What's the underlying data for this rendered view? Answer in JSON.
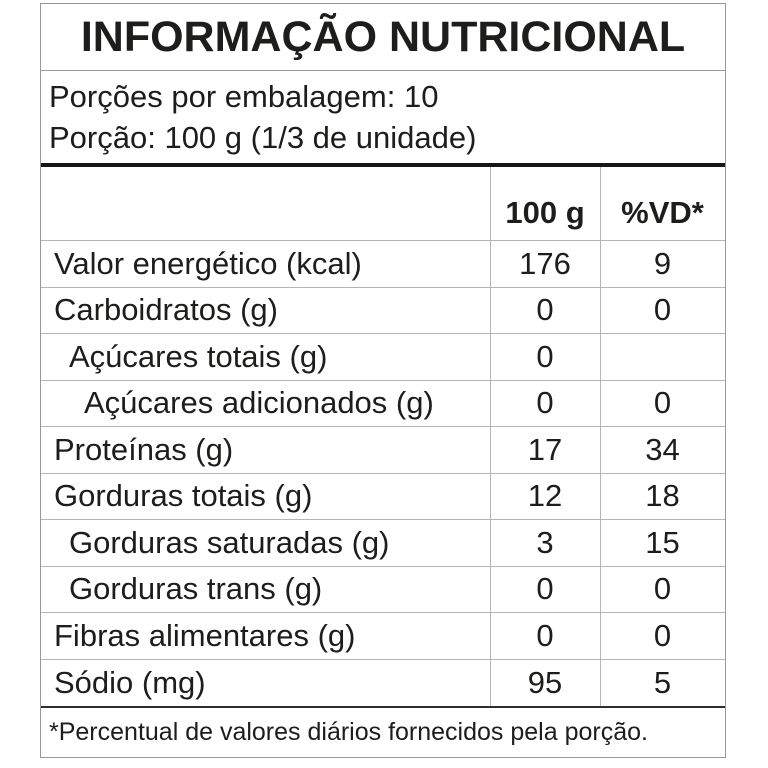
{
  "title": "INFORMAÇÃO NUTRICIONAL",
  "serving": {
    "servings_per_package": "Porções por embalagem: 10",
    "serving_size": "Porção: 100 g (1/3 de unidade)"
  },
  "table": {
    "headers": {
      "amount": "100 g",
      "vd": "%VD*"
    },
    "rows": [
      {
        "label": "Valor energético (kcal)",
        "indent": 0,
        "amount": "176",
        "vd": "9"
      },
      {
        "label": "Carboidratos (g)",
        "indent": 0,
        "amount": "0",
        "vd": "0"
      },
      {
        "label": "Açúcares totais (g)",
        "indent": 1,
        "amount": "0",
        "vd": ""
      },
      {
        "label": "Açúcares adicionados (g)",
        "indent": 2,
        "amount": "0",
        "vd": "0"
      },
      {
        "label": "Proteínas (g)",
        "indent": 0,
        "amount": "17",
        "vd": "34"
      },
      {
        "label": "Gorduras totais (g)",
        "indent": 0,
        "amount": "12",
        "vd": "18"
      },
      {
        "label": "Gorduras saturadas (g)",
        "indent": 1,
        "amount": "3",
        "vd": "15"
      },
      {
        "label": "Gorduras trans (g)",
        "indent": 1,
        "amount": "0",
        "vd": "0"
      },
      {
        "label": "Fibras alimentares (g)",
        "indent": 0,
        "amount": "0",
        "vd": "0"
      },
      {
        "label": "Sódio (mg)",
        "indent": 0,
        "amount": "95",
        "vd": "5"
      }
    ]
  },
  "footnote": "*Percentual de valores diários fornecidos pela porção.",
  "colors": {
    "text": "#1d1d1b",
    "outer_border": "#979797",
    "row_separator": "#b5b5b5",
    "thick_divider": "#161616"
  }
}
